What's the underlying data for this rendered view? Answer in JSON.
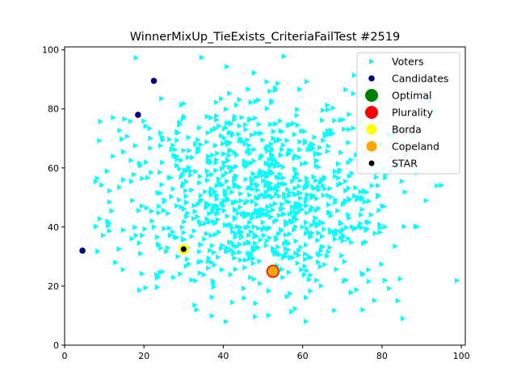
{
  "chart_data": {
    "type": "scatter",
    "title": "WinnerMixUp_TieExists_CriteriaFailTest #2519",
    "xlabel": "",
    "ylabel": "",
    "xlim": [
      0,
      101
    ],
    "ylim": [
      0,
      101
    ],
    "xticks": [
      0,
      20,
      40,
      60,
      80,
      100
    ],
    "yticks": [
      0,
      20,
      40,
      60,
      80,
      100
    ],
    "grid": false,
    "legend_position": "top-right",
    "voter_distribution": {
      "count": 1000,
      "center": [
        50,
        50
      ],
      "spread": [
        17,
        17
      ],
      "seed": 2519
    },
    "series": [
      {
        "name": "Voters",
        "marker": "triangle-right",
        "color": "#00ffff",
        "points": []
      },
      {
        "name": "Candidates",
        "marker": "circle",
        "color": "#000080",
        "points": [
          [
            4.5,
            32
          ],
          [
            18.5,
            78
          ],
          [
            22.5,
            89.5
          ],
          [
            30,
            32.5
          ],
          [
            52.5,
            25
          ]
        ]
      },
      {
        "name": "Optimal",
        "marker": "circle-large",
        "color": "#008000",
        "points": [
          [
            52.5,
            25
          ]
        ]
      },
      {
        "name": "Plurality",
        "marker": "circle-large",
        "color": "#ff0000",
        "points": [
          [
            52.5,
            25
          ]
        ]
      },
      {
        "name": "Borda",
        "marker": "circle-medium",
        "color": "#ffff00",
        "points": [
          [
            30,
            32.5
          ]
        ]
      },
      {
        "name": "Copeland",
        "marker": "circle-medium",
        "color": "#ffa500",
        "points": [
          [
            52.5,
            25
          ]
        ]
      },
      {
        "name": "STAR",
        "marker": "circle-small",
        "color": "#000000",
        "points": [
          [
            30,
            32.5
          ]
        ]
      }
    ]
  }
}
